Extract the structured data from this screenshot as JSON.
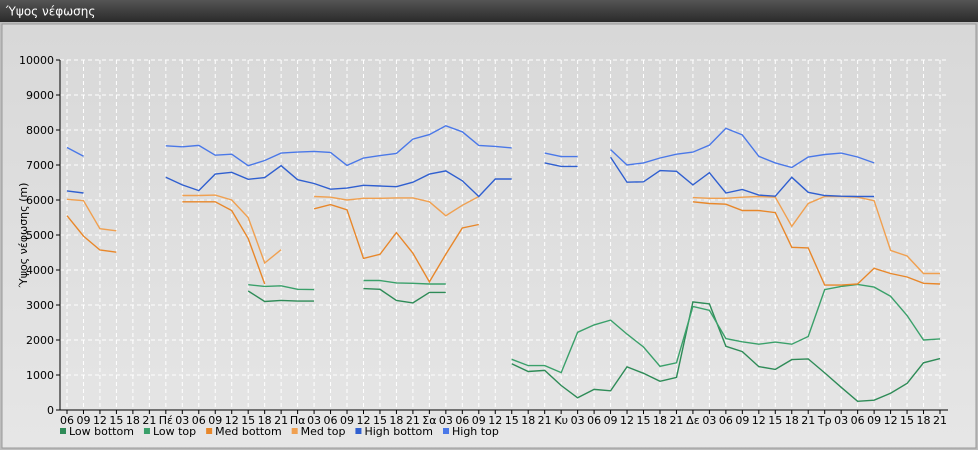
{
  "chart_data": {
    "type": "line",
    "title": "Ύψος νέφωσης",
    "y_label": "Ύψος νέφωσης (m)",
    "categories": [
      "06",
      "09",
      "12",
      "15",
      "18",
      "21",
      "Πέ",
      "03",
      "06",
      "09",
      "12",
      "15",
      "18",
      "21",
      "Πα",
      "03",
      "06",
      "09",
      "12",
      "15",
      "18",
      "21",
      "Σα",
      "03",
      "06",
      "09",
      "12",
      "15",
      "18",
      "21",
      "Κυ",
      "03",
      "06",
      "09",
      "12",
      "15",
      "18",
      "21",
      "Δε",
      "03",
      "06",
      "09",
      "12",
      "15",
      "18",
      "21",
      "Τρ",
      "03",
      "06",
      "09",
      "12",
      "15",
      "18",
      "21"
    ],
    "ylim": [
      0,
      10000
    ],
    "yticks": [
      0,
      1000,
      2000,
      3000,
      4000,
      5000,
      6000,
      7000,
      8000,
      9000,
      10000
    ],
    "grid": true,
    "series": [
      {
        "name": "Low bottom",
        "color": "#2e8b57",
        "values": [
          null,
          null,
          null,
          null,
          null,
          null,
          null,
          null,
          null,
          null,
          null,
          3400,
          3100,
          3130,
          3110,
          3110,
          null,
          null,
          3470,
          3450,
          3130,
          3060,
          3360,
          3360,
          null,
          null,
          null,
          1320,
          1100,
          1130,
          700,
          350,
          590,
          550,
          1230,
          1050,
          820,
          930,
          3090,
          3030,
          1820,
          1670,
          1240,
          1160,
          1440,
          1460,
          1060,
          650,
          250,
          280,
          480,
          760,
          1350,
          1470
        ]
      },
      {
        "name": "Low top",
        "color": "#3aa06a",
        "values": [
          null,
          null,
          null,
          null,
          null,
          null,
          null,
          null,
          null,
          null,
          null,
          3580,
          3530,
          3550,
          3450,
          3440,
          null,
          null,
          3700,
          3700,
          3630,
          3620,
          3600,
          3600,
          null,
          null,
          null,
          1450,
          1270,
          1270,
          1070,
          2220,
          2430,
          2570,
          2170,
          1800,
          1250,
          1350,
          2960,
          2850,
          2040,
          1950,
          1880,
          1940,
          1880,
          2100,
          3440,
          3530,
          3590,
          3510,
          3250,
          2700,
          2000,
          2030
        ]
      },
      {
        "name": "Med bottom",
        "color": "#e8872a",
        "values": [
          5550,
          4970,
          4570,
          4510,
          null,
          null,
          null,
          5950,
          5950,
          5950,
          5700,
          4900,
          3600,
          null,
          null,
          5750,
          5870,
          5720,
          4330,
          4450,
          5070,
          4480,
          3660,
          4450,
          5200,
          5300,
          null,
          null,
          null,
          null,
          null,
          null,
          null,
          null,
          null,
          null,
          null,
          null,
          5950,
          5900,
          5880,
          5700,
          5700,
          5640,
          4650,
          4630,
          3570,
          3570,
          3600,
          4050,
          3900,
          3800,
          3620,
          3600
        ]
      },
      {
        "name": "Med top",
        "color": "#f0a050",
        "values": [
          6020,
          5980,
          5180,
          5120,
          null,
          null,
          null,
          6130,
          6130,
          6140,
          6000,
          5500,
          4200,
          4580,
          null,
          6100,
          6080,
          6000,
          6050,
          6050,
          6060,
          6060,
          5950,
          5550,
          5850,
          6100,
          null,
          null,
          null,
          null,
          null,
          null,
          null,
          null,
          null,
          null,
          null,
          null,
          6070,
          6050,
          6050,
          6080,
          6100,
          6080,
          5250,
          5900,
          6100,
          6100,
          6080,
          5980,
          4560,
          4400,
          3900,
          3900
        ]
      },
      {
        "name": "High bottom",
        "color": "#2f5fd0",
        "values": [
          6260,
          6200,
          null,
          null,
          null,
          null,
          6650,
          6430,
          6270,
          6740,
          6790,
          6590,
          6640,
          6980,
          6580,
          6470,
          6310,
          6340,
          6420,
          6400,
          6380,
          6510,
          6740,
          6830,
          6550,
          6100,
          6600,
          6600,
          null,
          7060,
          6960,
          6960,
          null,
          7220,
          6510,
          6520,
          6840,
          6820,
          6430,
          6780,
          6200,
          6300,
          6140,
          6110,
          6650,
          6220,
          6130,
          6110,
          6100,
          6100,
          null,
          null,
          null,
          null
        ]
      },
      {
        "name": "High top",
        "color": "#4a78e8",
        "values": [
          7500,
          7250,
          null,
          null,
          null,
          null,
          7550,
          7520,
          7560,
          7280,
          7310,
          6980,
          7130,
          7340,
          7370,
          7390,
          7360,
          6990,
          7200,
          7270,
          7330,
          7740,
          7870,
          8120,
          7950,
          7560,
          7530,
          7490,
          null,
          7340,
          7240,
          7240,
          null,
          7440,
          7000,
          7060,
          7200,
          7310,
          7370,
          7570,
          8050,
          7860,
          7250,
          7060,
          6930,
          7230,
          7300,
          7340,
          7230,
          7060,
          null,
          null,
          null,
          null
        ]
      }
    ]
  }
}
